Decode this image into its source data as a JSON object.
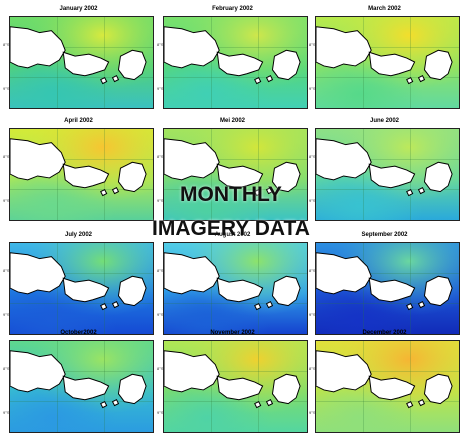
{
  "overlay": {
    "line1": "MONTHLY",
    "line2": "IMAGERY DATA"
  },
  "lat_labels": [
    "8°S",
    "9°S"
  ],
  "panels": [
    {
      "title": "January 2002",
      "base": "#52d17b",
      "mid": "#6fdc6a",
      "hot": "#d8ea3e",
      "cool": "#35c6b2",
      "deep": "#3ac1c0"
    },
    {
      "title": "February 2002",
      "base": "#56d77c",
      "mid": "#7ae16d",
      "hot": "#cfe74b",
      "cool": "#40d0b4",
      "deep": "#42d0b4"
    },
    {
      "title": "March 2002",
      "base": "#8be267",
      "mid": "#b8ea4c",
      "hot": "#f3de2c",
      "cool": "#56d98a",
      "deep": "#61d9a0"
    },
    {
      "title": "April 2002",
      "base": "#a8e65a",
      "mid": "#d3ea38",
      "hot": "#f7c531",
      "cool": "#6ad98d",
      "deep": "#58d09a"
    },
    {
      "title": "Mei 2002",
      "base": "#7ddb75",
      "mid": "#a3e45e",
      "hot": "#d2e63b",
      "cool": "#4fd1a0",
      "deep": "#3cc4c3"
    },
    {
      "title": "June 2002",
      "base": "#5fd5a2",
      "mid": "#8ee185",
      "hot": "#bde95b",
      "cool": "#38c2d1",
      "deep": "#2aa9db"
    },
    {
      "title": "July 2002",
      "base": "#1e78e0",
      "mid": "#3fb8e7",
      "hot": "#74de77",
      "cool": "#1b5dd9",
      "deep": "#154ad4"
    },
    {
      "title": "August 2002",
      "base": "#2e9ae6",
      "mid": "#52cde6",
      "hot": "#8de36b",
      "cool": "#1b61d8",
      "deep": "#1542cf"
    },
    {
      "title": "September 2002",
      "base": "#1c55d4",
      "mid": "#2c8fe1",
      "hot": "#6ad7a0",
      "cool": "#1533c6",
      "deep": "#112ab8"
    },
    {
      "title": "October2002",
      "base": "#36bad2",
      "mid": "#5fd88d",
      "hot": "#9be463",
      "cool": "#2b99e2",
      "deep": "#2b9ce0"
    },
    {
      "title": "November 2002",
      "base": "#7bdc6e",
      "mid": "#b1e755",
      "hot": "#efd12f",
      "cool": "#4fd3a6",
      "deep": "#54d6a0"
    },
    {
      "title": "December 2002",
      "base": "#bce44b",
      "mid": "#e0e03b",
      "hot": "#f6b533",
      "cool": "#8fe07b",
      "deep": "#8fe07b"
    }
  ]
}
